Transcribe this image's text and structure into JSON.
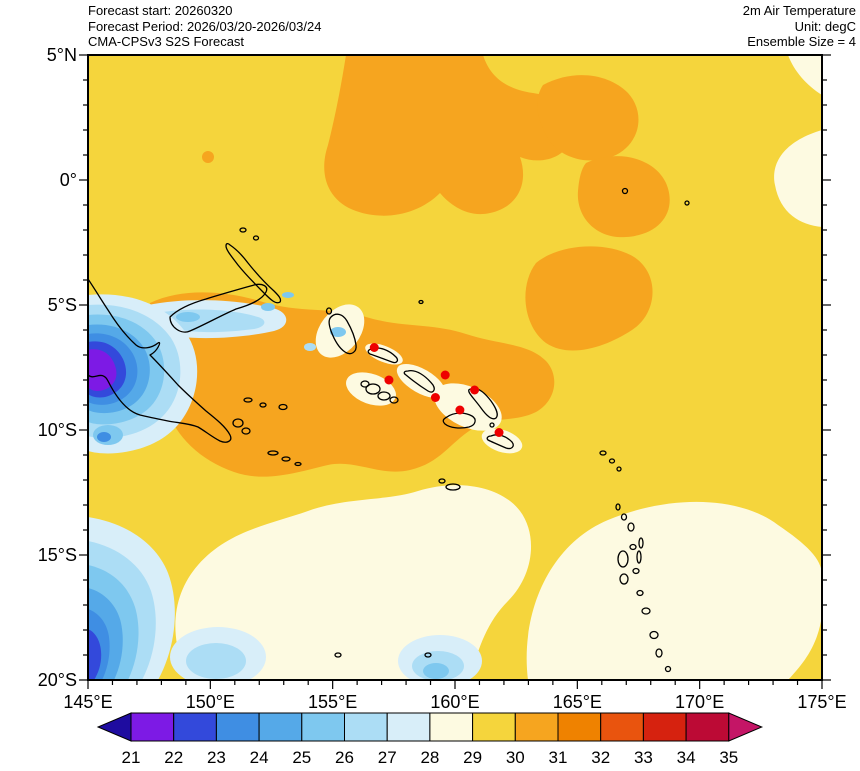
{
  "header": {
    "left": [
      "Forecast start: 20260320",
      "Forecast Period: 2026/03/20-2026/03/24",
      "CMA-CPSv3 S2S Forecast"
    ],
    "right": [
      "2m Air Temperature",
      "Unit: degC",
      "Ensemble Size = 4"
    ]
  },
  "colors": {
    "background": "#FFFFFF",
    "coastline": "#000000",
    "frame": "#000000",
    "marker": "#EE0000"
  },
  "chart_data": {
    "type": "heatmap",
    "title": "2m Air Temperature",
    "model": "CMA-CPSv3 S2S Forecast",
    "forecast_start": "20260320",
    "forecast_period": "2026/03/20-2026/03/24",
    "unit": "degC",
    "ensemble_size": 4,
    "x_axis": {
      "tick_labels": [
        "145°E",
        "150°E",
        "155°E",
        "160°E",
        "165°E",
        "170°E",
        "175°E"
      ],
      "range_deg_east": [
        145,
        175
      ],
      "minor_tick_step_deg": 1,
      "major_tick_step_deg": 5
    },
    "y_axis": {
      "tick_labels": [
        "5°N",
        "0°",
        "5°S",
        "10°S",
        "15°S",
        "20°S"
      ],
      "range_deg_north": [
        -20,
        5
      ],
      "minor_tick_step_deg": 1,
      "major_tick_step_deg": 5
    },
    "colorbar": {
      "tick_labels": [
        "21",
        "22",
        "23",
        "24",
        "25",
        "26",
        "27",
        "28",
        "29",
        "30",
        "31",
        "32",
        "33",
        "34",
        "35"
      ],
      "colors": [
        "#1E0CA0",
        "#7D1AE5",
        "#3349DB",
        "#3F8EE3",
        "#55A9E8",
        "#7EC8EF",
        "#ACDDF5",
        "#D8EEF9",
        "#FDFAE1",
        "#F5D53C",
        "#F6A51F",
        "#EF8200",
        "#E9540E",
        "#D6220F",
        "#BC0A35",
        "#C41566"
      ],
      "note": "first and last colors are the below-range / above-range arrow colors",
      "unit": "degC"
    },
    "markers": [
      {
        "lon": 156.7,
        "lat": -6.7
      },
      {
        "lon": 157.3,
        "lat": -8.0
      },
      {
        "lon": 159.6,
        "lat": -7.8
      },
      {
        "lon": 159.2,
        "lat": -8.7
      },
      {
        "lon": 160.8,
        "lat": -8.4
      },
      {
        "lon": 160.2,
        "lat": -9.2
      },
      {
        "lon": 161.8,
        "lat": -10.1
      }
    ],
    "field_summary": "Filled temperature contours over 145E-175E, 20S-5N: predominantly 29-30 degC (yellow) ocean; 30-31 degC (orange) patches near the equator and around the Solomon Sea / Solomon Islands; 28-29 degC (cream) south of ~12S, along the far eastern edge and around islands; 21-28 degC (blues to violet) over the New Guinea highlands and the far southwest corner; red dots mark Solomon Islands stations."
  }
}
